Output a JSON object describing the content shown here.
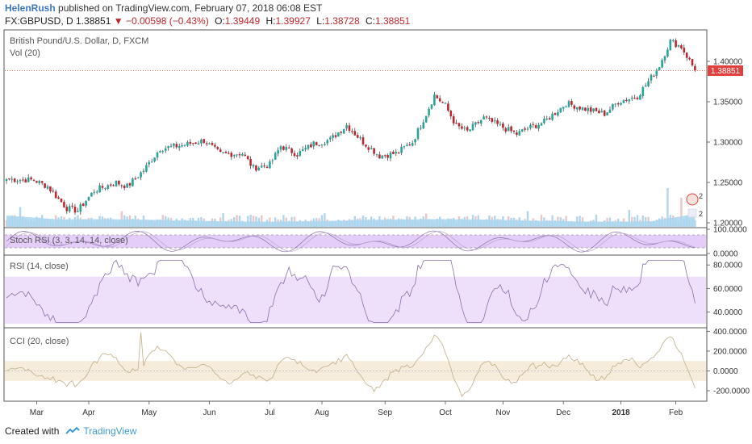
{
  "header": {
    "author": "HelenRush",
    "published_text": "published on TradingView.com, February 07, 2018 06:08 EST",
    "symbol": "FX:GBPUSD, D",
    "last": "1.38851",
    "change": "▼ −0.00598 (−0.43%)",
    "o_label": "O:",
    "o_value": "1.39449",
    "h_label": "H:",
    "h_value": "1.39927",
    "l_label": "L:",
    "l_value": "1.38728",
    "c_label": "C:",
    "c_value": "1.38851"
  },
  "footer": {
    "created_with": "Created with",
    "brand": "TradingView"
  },
  "colors": {
    "up": "#26a69a",
    "down": "#c0262d",
    "volume": "#9ecae9",
    "rsi_band": "#eee0fb",
    "cci_band": "#f5ecdc",
    "osc_line": "#8b6fa8",
    "cci_line": "#c2ae86",
    "price_line": "#e06c5c"
  },
  "chart_data": [
    {
      "type": "candlestick",
      "title": "British Pound/U.S. Dollar, D, FXCM",
      "volume_label": "Vol (20)",
      "last_price": "1.38851",
      "y_ticks": [
        "1.40000",
        "1.35000",
        "1.30000",
        "1.25000",
        "1.20000"
      ],
      "y_tick_values": [
        1.4,
        1.35,
        1.3,
        1.25,
        1.2
      ],
      "ylim": [
        1.195,
        1.438
      ],
      "x_labels": [
        "Mar",
        "Apr",
        "May",
        "Jun",
        "Jul",
        "Aug",
        "Sep",
        "Oct",
        "Nov",
        "Dec",
        "2018",
        "Feb"
      ],
      "x_label_index": [
        11,
        30,
        52,
        74,
        96,
        115,
        138,
        160,
        181,
        203,
        224,
        244
      ],
      "bars": 252,
      "close_anchors": [
        [
          0,
          1.254
        ],
        [
          10,
          1.253
        ],
        [
          15,
          1.245
        ],
        [
          22,
          1.218
        ],
        [
          26,
          1.215
        ],
        [
          32,
          1.24
        ],
        [
          40,
          1.25
        ],
        [
          44,
          1.245
        ],
        [
          50,
          1.265
        ],
        [
          56,
          1.292
        ],
        [
          64,
          1.296
        ],
        [
          72,
          1.302
        ],
        [
          78,
          1.285
        ],
        [
          86,
          1.286
        ],
        [
          90,
          1.268
        ],
        [
          96,
          1.272
        ],
        [
          100,
          1.295
        ],
        [
          106,
          1.285
        ],
        [
          112,
          1.298
        ],
        [
          118,
          1.303
        ],
        [
          124,
          1.321
        ],
        [
          130,
          1.3
        ],
        [
          136,
          1.283
        ],
        [
          142,
          1.286
        ],
        [
          148,
          1.3
        ],
        [
          153,
          1.335
        ],
        [
          156,
          1.358
        ],
        [
          160,
          1.345
        ],
        [
          164,
          1.32
        ],
        [
          168,
          1.313
        ],
        [
          174,
          1.33
        ],
        [
          178,
          1.323
        ],
        [
          186,
          1.31
        ],
        [
          190,
          1.317
        ],
        [
          196,
          1.325
        ],
        [
          204,
          1.348
        ],
        [
          212,
          1.34
        ],
        [
          218,
          1.335
        ],
        [
          223,
          1.35
        ],
        [
          230,
          1.357
        ],
        [
          234,
          1.375
        ],
        [
          238,
          1.395
        ],
        [
          242,
          1.425
        ],
        [
          246,
          1.418
        ],
        [
          250,
          1.395
        ],
        [
          251,
          1.3885
        ]
      ]
    },
    {
      "type": "line",
      "title": "Stoch RSI (3, 3, 14, 14, close)",
      "y_ticks": [
        "100.0000",
        "0.0000"
      ],
      "ylim": [
        0,
        100
      ]
    },
    {
      "type": "line",
      "title": "RSI (14, close)",
      "y_ticks": [
        "80.0000",
        "60.0000",
        "40.0000"
      ],
      "ylim": [
        28,
        87
      ],
      "band": [
        30,
        70
      ]
    },
    {
      "type": "line",
      "title": "CCI (20, close)",
      "y_ticks": [
        "400.0000",
        "200.0000",
        "0.0000",
        "-200.0000"
      ],
      "ylim": [
        -290,
        420
      ],
      "band": [
        -100,
        100
      ]
    }
  ]
}
